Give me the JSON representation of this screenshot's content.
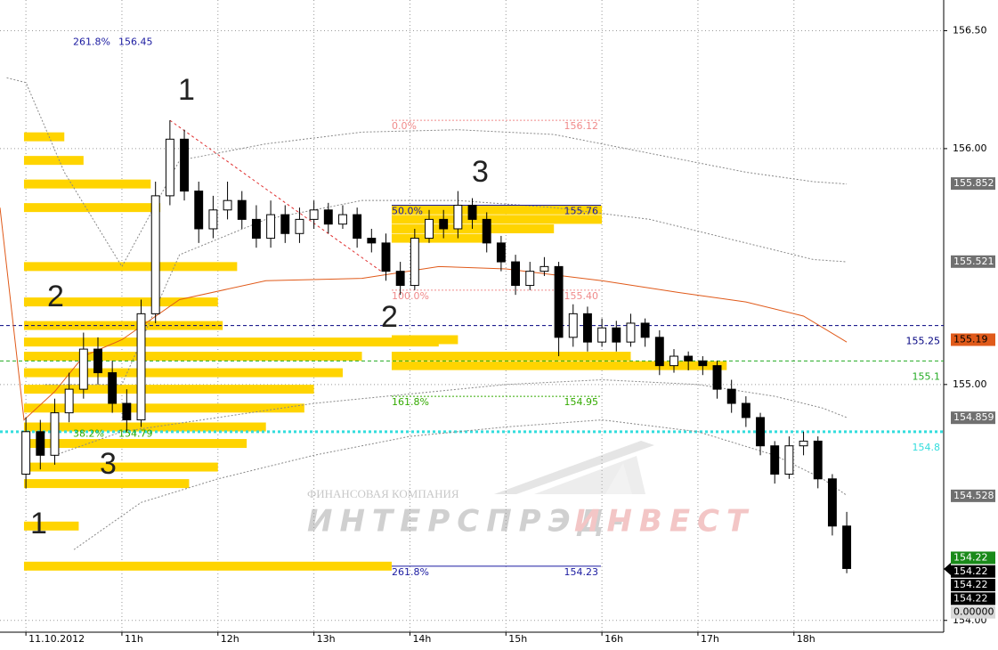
{
  "chart_data": {
    "type": "candlestick",
    "xlim": [
      9.73,
      19.56
    ],
    "ylim": [
      153.95,
      156.63
    ],
    "xticks": [
      {
        "value": 10,
        "label": "11.10.2012"
      },
      {
        "value": 11,
        "label": "11h"
      },
      {
        "value": 12,
        "label": "12h"
      },
      {
        "value": 13,
        "label": "13h"
      },
      {
        "value": 14,
        "label": "14h"
      },
      {
        "value": 15,
        "label": "15h"
      },
      {
        "value": 16,
        "label": "16h"
      },
      {
        "value": 17,
        "label": "17h"
      },
      {
        "value": 18,
        "label": "18h"
      }
    ],
    "yticks": [
      {
        "value": 156.5,
        "label": "156.50"
      },
      {
        "value": 156,
        "label": "156.00"
      },
      {
        "value": 155,
        "label": "155.00"
      },
      {
        "value": 154,
        "label": "154.00"
      }
    ],
    "grid": true,
    "x": [
      10,
      10.15,
      10.3,
      10.45,
      10.6,
      10.75,
      10.9,
      11.05,
      11.2,
      11.35,
      11.5,
      11.65,
      11.8,
      11.95,
      12.1,
      12.25,
      12.4,
      12.55,
      12.7,
      12.85,
      13,
      13.15,
      13.3,
      13.45,
      13.6,
      13.75,
      13.9,
      14.05,
      14.2,
      14.35,
      14.5,
      14.65,
      14.8,
      14.95,
      15.1,
      15.25,
      15.4,
      15.55,
      15.7,
      15.85,
      16,
      16.15,
      16.3,
      16.45,
      16.6,
      16.75,
      16.9,
      17.05,
      17.2,
      17.35,
      17.5,
      17.65,
      17.8,
      17.95,
      18.1,
      18.25,
      18.4,
      18.55
    ],
    "open": [
      154.62,
      154.8,
      154.7,
      154.88,
      154.98,
      155.15,
      155.05,
      154.92,
      154.85,
      155.3,
      155.8,
      156.04,
      155.82,
      155.66,
      155.74,
      155.78,
      155.7,
      155.62,
      155.72,
      155.64,
      155.7,
      155.74,
      155.68,
      155.72,
      155.62,
      155.6,
      155.48,
      155.42,
      155.62,
      155.7,
      155.66,
      155.76,
      155.7,
      155.6,
      155.52,
      155.42,
      155.48,
      155.5,
      155.2,
      155.3,
      155.18,
      155.24,
      155.18,
      155.26,
      155.2,
      155.08,
      155.12,
      155.1,
      155.08,
      154.98,
      154.92,
      154.86,
      154.74,
      154.62,
      154.74,
      154.76,
      154.6,
      154.4
    ],
    "high": [
      154.86,
      154.85,
      154.94,
      155.05,
      155.22,
      155.2,
      155.1,
      154.98,
      155.36,
      155.86,
      156.12,
      156.08,
      155.86,
      155.8,
      155.86,
      155.82,
      155.76,
      155.78,
      155.76,
      155.75,
      155.78,
      155.77,
      155.76,
      155.75,
      155.66,
      155.64,
      155.52,
      155.66,
      155.74,
      155.74,
      155.82,
      155.79,
      155.73,
      155.63,
      155.55,
      155.52,
      155.54,
      155.52,
      155.34,
      155.33,
      155.28,
      155.27,
      155.3,
      155.28,
      155.23,
      155.15,
      155.14,
      155.12,
      155.1,
      155.02,
      154.95,
      154.88,
      154.76,
      154.78,
      154.8,
      154.78,
      154.62,
      154.46
    ],
    "low": [
      154.56,
      154.64,
      154.66,
      154.84,
      154.94,
      155,
      154.88,
      154.8,
      154.82,
      155.26,
      155.76,
      155.78,
      155.6,
      155.62,
      155.7,
      155.66,
      155.58,
      155.58,
      155.6,
      155.6,
      155.66,
      155.64,
      155.66,
      155.58,
      155.56,
      155.44,
      155.38,
      155.4,
      155.6,
      155.62,
      155.62,
      155.66,
      155.56,
      155.48,
      155.38,
      155.4,
      155.46,
      155.12,
      155.16,
      155.14,
      155.16,
      155.14,
      155.16,
      155.16,
      155.04,
      155.05,
      155.06,
      155.04,
      154.94,
      154.88,
      154.82,
      154.7,
      154.58,
      154.6,
      154.7,
      154.56,
      154.36,
      154.2
    ],
    "close": [
      154.8,
      154.7,
      154.88,
      154.98,
      155.15,
      155.05,
      154.92,
      154.85,
      155.3,
      155.8,
      156.04,
      155.82,
      155.66,
      155.74,
      155.78,
      155.7,
      155.62,
      155.72,
      155.64,
      155.7,
      155.74,
      155.68,
      155.72,
      155.62,
      155.6,
      155.48,
      155.42,
      155.62,
      155.7,
      155.66,
      155.76,
      155.7,
      155.6,
      155.52,
      155.42,
      155.48,
      155.5,
      155.2,
      155.3,
      155.18,
      155.24,
      155.18,
      155.26,
      155.2,
      155.08,
      155.12,
      155.1,
      155.08,
      154.98,
      154.92,
      154.86,
      154.74,
      154.62,
      154.74,
      154.76,
      154.6,
      154.4,
      154.22
    ],
    "lines": [
      {
        "color": "#e05a1a",
        "style": "solid",
        "x": [
          9.73,
          9.98,
          10.3,
          10.6,
          11,
          11.6,
          12.5,
          13.5,
          14.3,
          15,
          16,
          16.8,
          17.5,
          18.1,
          18.55
        ],
        "values": [
          155.75,
          154.85,
          154.97,
          155.12,
          155.19,
          155.36,
          155.44,
          155.45,
          155.5,
          155.49,
          155.44,
          155.39,
          155.35,
          155.29,
          155.18
        ]
      },
      {
        "color": "#888888",
        "style": "dotted",
        "x": [
          9.8,
          10,
          10.4,
          11,
          11.6,
          12.5,
          13.5,
          14.5,
          15.5,
          16.5,
          17.5,
          18.2,
          18.55
        ],
        "values": [
          156.3,
          156.28,
          155.9,
          155.5,
          155.95,
          156.02,
          156.07,
          156.08,
          156.06,
          155.98,
          155.9,
          155.86,
          155.85
        ]
      },
      {
        "color": "#888888",
        "style": "dotted",
        "x": [
          10.2,
          11,
          11.6,
          12.5,
          13.5,
          14.5,
          15.5,
          16.5,
          17.5,
          18.2,
          18.55
        ],
        "values": [
          155,
          155,
          155.55,
          155.7,
          155.78,
          155.78,
          155.75,
          155.7,
          155.6,
          155.53,
          155.52
        ]
      },
      {
        "color": "#888888",
        "style": "dotted",
        "x": [
          10.3,
          11,
          12,
          13,
          14,
          15,
          16,
          17,
          17.8,
          18.3,
          18.55
        ],
        "values": [
          154.7,
          154.8,
          154.86,
          154.92,
          154.96,
          155,
          155.02,
          155,
          154.95,
          154.9,
          154.86
        ]
      },
      {
        "color": "#888888",
        "style": "dotted",
        "x": [
          10.5,
          11.2,
          12,
          13,
          14,
          15,
          16,
          17,
          17.8,
          18.3,
          18.55
        ],
        "values": [
          154.3,
          154.5,
          154.6,
          154.7,
          154.78,
          154.82,
          154.85,
          154.8,
          154.7,
          154.6,
          154.53
        ]
      }
    ],
    "trendline": {
      "color": "#e03030",
      "x": [
        11.5,
        13.7
      ],
      "values": [
        156.12,
        155.48
      ]
    },
    "profiles": [
      {
        "color": "#ffd400",
        "start": 9.98,
        "prices": [
          156.05,
          155.95,
          155.85,
          155.75,
          155.5,
          155.35,
          155.25,
          155.18,
          155.12,
          155.05,
          154.98,
          154.9,
          154.82,
          154.75,
          154.65,
          154.58,
          154.4,
          154.23
        ],
        "ends": [
          10.4,
          10.6,
          11.3,
          11.4,
          12.2,
          12,
          12.05,
          14.3,
          13.5,
          13.3,
          13,
          12.9,
          12.5,
          12.3,
          12,
          11.7,
          10.55,
          13.81
        ]
      },
      {
        "color": "#ffd400",
        "start": 13.81,
        "prices": [
          155.74,
          155.7,
          155.66,
          155.62,
          155.19,
          155.12,
          155.08
        ],
        "ends": [
          16,
          16,
          15.5,
          14.8,
          14.5,
          16.3,
          17.3
        ]
      }
    ],
    "levels": [
      {
        "value": 155.25,
        "color": "#000080",
        "label": 155.25
      },
      {
        "value": 155.1,
        "color": "#22aa22",
        "label": 155.1
      },
      {
        "value": 154.8,
        "color": "#33dddd",
        "label": 154.8
      }
    ],
    "fib_a": [
      {
        "label": "261.8%",
        "price": 156.45,
        "color": "#1a1aa0"
      },
      {
        "label": "38.2%",
        "price": 154.79,
        "color": "#33aa00"
      }
    ],
    "fib_b": [
      {
        "label": "0.0%",
        "price": 156.12,
        "color": "#f08a8a"
      },
      {
        "label": "50.0%",
        "price": 155.76,
        "color": "#1a1aa0"
      },
      {
        "label": "100.0%",
        "price": {
          "value": 155.4,
          "label": "155.40"
        },
        "color": "#f08a8a"
      },
      {
        "label": "161.8%",
        "price": 154.95,
        "color": "#33aa00"
      },
      {
        "label": "261.8%",
        "price": 154.23,
        "color": "#1a1aa0"
      }
    ],
    "tags": [
      {
        "value": 155.852,
        "bg": "#707070",
        "fg": "#ffffff"
      },
      {
        "value": 155.521,
        "bg": "#707070",
        "fg": "#ffffff"
      },
      {
        "value": 155.19,
        "bg": "#e05a1a",
        "fg": "#000000"
      },
      {
        "value": 154.859,
        "bg": "#707070",
        "fg": "#ffffff"
      },
      {
        "value": 154.528,
        "bg": "#707070",
        "fg": "#ffffff"
      },
      {
        "value": 154.22,
        "bg": "#1a8a1a",
        "fg": "#ffffff"
      },
      {
        "value": 154.22,
        "bg": "#000000",
        "fg": "#ffffff"
      },
      {
        "value": 154.22,
        "bg": "#000000",
        "fg": "#ffffff"
      },
      {
        "value": 154.22,
        "bg": "#000000",
        "fg": "#ffffff"
      },
      {
        "value": 0,
        "label": "0.00000",
        "bg": "#d8d8d8",
        "fg": "#000000"
      }
    ],
    "wave_labels": [
      "1",
      "3",
      "2",
      "2",
      "3",
      "1"
    ],
    "watermark": {
      "company": "ФИНАНСОВАЯ КОМПАНИЯ",
      "name_a": "ИНТЕРСПРЭД-",
      "name_b": "ИНВЕСТ"
    }
  }
}
